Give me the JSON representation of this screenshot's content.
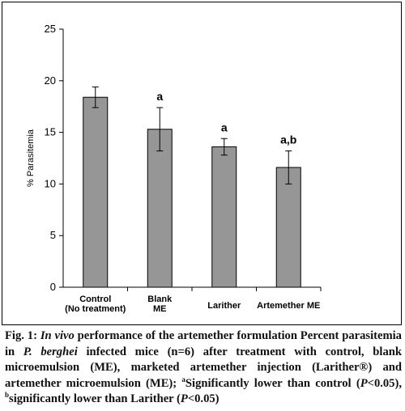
{
  "chart_data": {
    "type": "bar",
    "ylabel": "% Parasitemia",
    "xlabel": "",
    "ylim": [
      0,
      25
    ],
    "yticks": [
      0,
      5,
      10,
      15,
      20,
      25
    ],
    "categories": [
      [
        "Control",
        "(No treatment)"
      ],
      [
        "Blank",
        "ME"
      ],
      [
        "Larither"
      ],
      [
        "Artemether ME"
      ]
    ],
    "values": [
      18.4,
      15.3,
      13.6,
      11.6
    ],
    "errors": [
      1.0,
      2.1,
      0.8,
      1.6
    ],
    "annotations": [
      "",
      "a",
      "a",
      "a,b"
    ],
    "bar_color": "#969696",
    "grid": false
  },
  "caption": {
    "fig_label": "Fig. 1:",
    "seg1": "In vivo",
    "seg2": " performance of the artemether formulation Percent parasitemia in ",
    "seg3": "P. berghei",
    "seg4": " infected mice (n=6) after treatment with control, blank microemulsion (ME), marketed artemether injection (Larither®) and artemether microemulsion (ME); ",
    "sup_a": "a",
    "seg5": "Significantly lower than control (",
    "seg6": "P",
    "seg7": "<0.05), ",
    "sup_b": "b",
    "seg8": "significantly lower than Larither (",
    "seg9": "P",
    "seg10": "<0.05)"
  }
}
